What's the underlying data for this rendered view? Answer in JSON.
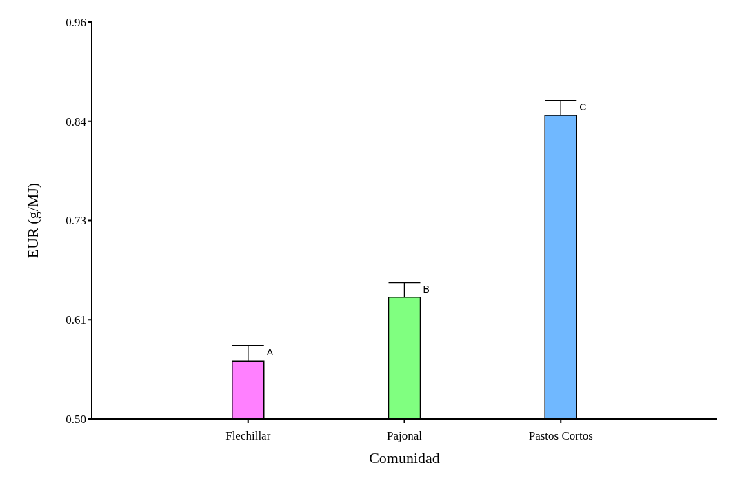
{
  "chart_data": {
    "type": "bar",
    "xlabel": "Comunidad",
    "ylabel": "EUR (g/MJ)",
    "categories": [
      "Flechillar",
      "Pajonal",
      "Pastos Cortos"
    ],
    "values": [
      0.567,
      0.641,
      0.852
    ],
    "colors": [
      "#ff80ff",
      "#80ff80",
      "#70b8ff"
    ],
    "errors": [
      [
        0.567,
        0.585
      ],
      [
        0.641,
        0.658
      ],
      [
        0.852,
        0.869
      ]
    ],
    "ylim": [
      0.5,
      0.96
    ],
    "yticks": [
      {
        "value": 0.5,
        "label": "0.50"
      },
      {
        "value": 0.615,
        "label": "0.61"
      },
      {
        "value": 0.73,
        "label": "0.73"
      },
      {
        "value": 0.845,
        "label": "0.84"
      },
      {
        "value": 0.96,
        "label": "0.96"
      }
    ],
    "annotations": [
      {
        "text": "A",
        "x": "Flechillar",
        "y": 0.585
      },
      {
        "text": "B",
        "x": "Pajonal",
        "y": 0.658
      },
      {
        "text": "C",
        "x": "Pastos Cortos",
        "y": 0.869
      }
    ],
    "grid": false
  }
}
